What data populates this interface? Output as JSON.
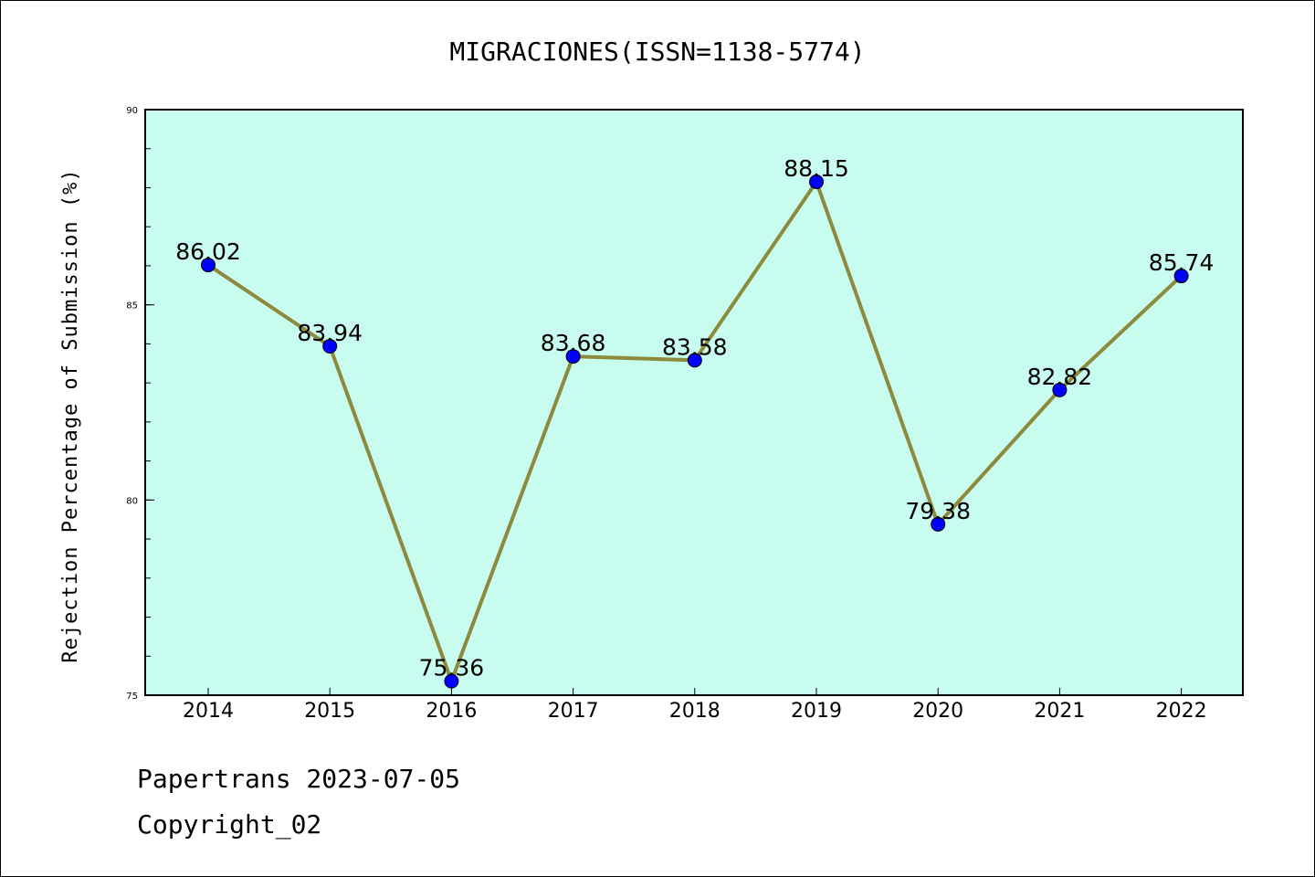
{
  "chart_data": {
    "type": "line",
    "title": "MIGRACIONES(ISSN=1138-5774)",
    "ylabel": "Rejection Percentage of Submission (%)",
    "xlabel": "",
    "categories": [
      "2014",
      "2015",
      "2016",
      "2017",
      "2018",
      "2019",
      "2020",
      "2021",
      "2022"
    ],
    "series": [
      {
        "values": [
          86.02,
          83.94,
          75.36,
          83.68,
          83.58,
          88.15,
          79.38,
          82.82,
          85.74
        ],
        "labels": [
          "86.02",
          "83.94",
          "75.36",
          "83.68",
          "83.58",
          "88.15",
          "79.38",
          "82.82",
          "85.74"
        ]
      }
    ],
    "ylim": [
      75,
      90
    ],
    "yticks": [
      "75",
      "80",
      "85",
      "90"
    ],
    "yminor_step": 1,
    "grid": false,
    "colors": {
      "plot_background": "#c8fcee",
      "line": "#8c8a3c",
      "marker": "#0000ff"
    }
  },
  "footer": {
    "line1": "Papertrans 2023-07-05",
    "line2": "Copyright_02"
  }
}
